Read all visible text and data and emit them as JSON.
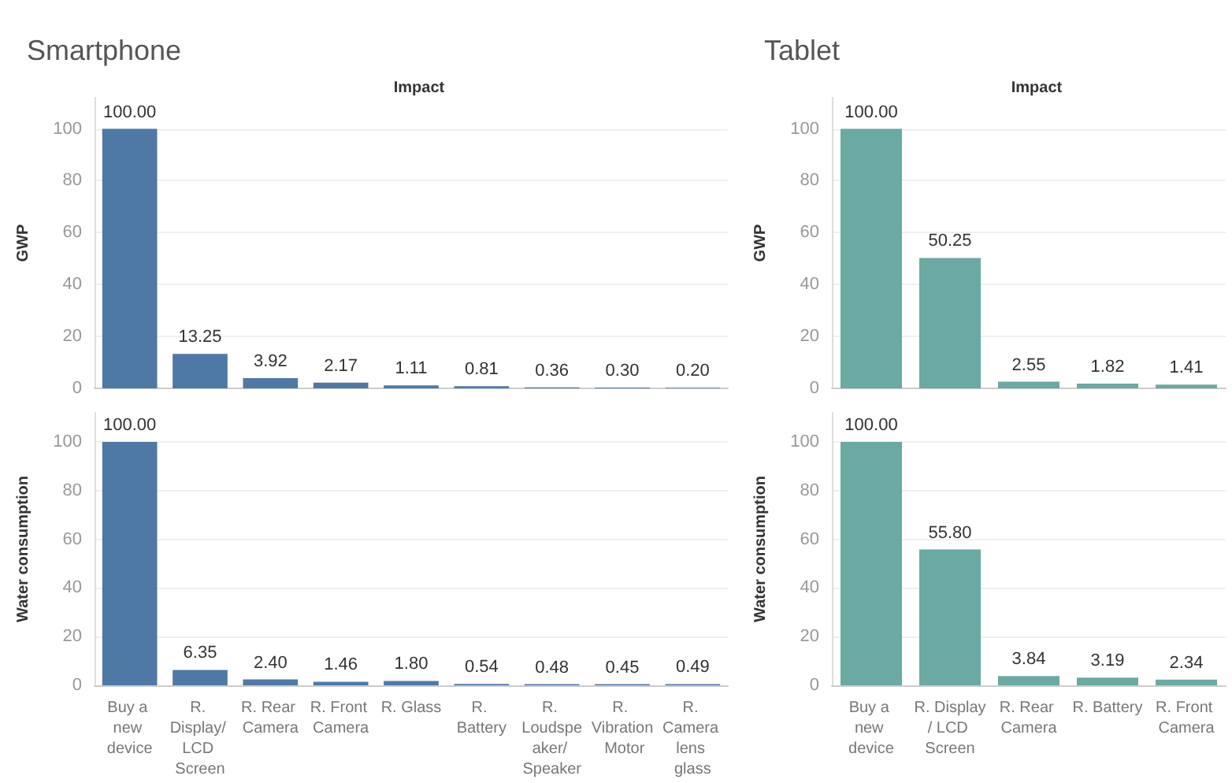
{
  "chart_data": [
    {
      "type": "bar",
      "title": "Smartphone",
      "subtitle": "Impact",
      "ylabel": "GWP",
      "categories": [
        "Buy a new device",
        "R. Display/ LCD Screen",
        "R. Rear Camera",
        "R. Front Camera",
        "R. Glass",
        "R. Battery",
        "R. Loudspeaker/ Speaker",
        "R. Vibration Motor",
        "R. Camera lens glass"
      ],
      "series": [
        {
          "color": "#4e79a7",
          "values": [
            100,
            13.25,
            3.92,
            2.17,
            1.11,
            0.81,
            0.36,
            0.3,
            0.2
          ],
          "value_labels": [
            "100.00",
            "13.25",
            "3.92",
            "2.17",
            "1.11",
            "0.81",
            "0.36",
            "0.30",
            "0.20"
          ]
        }
      ],
      "ylim": [
        0,
        112
      ],
      "yticks": [
        0,
        20,
        40,
        60,
        80,
        100
      ],
      "grid": "y",
      "tick_labels": "y"
    },
    {
      "type": "bar",
      "ylabel": "Water consumption",
      "categories": [
        "Buy a new device",
        "R. Display/ LCD Screen",
        "R. Rear Camera",
        "R. Front Camera",
        "R. Glass",
        "R. Battery",
        "R. Loudspeaker/ Speaker",
        "R. Vibration Motor",
        "R. Camera lens glass"
      ],
      "series": [
        {
          "color": "#4e79a7",
          "values": [
            100,
            6.35,
            2.4,
            1.46,
            1.8,
            0.54,
            0.48,
            0.45,
            0.49
          ],
          "value_labels": [
            "100.00",
            "6.35",
            "2.40",
            "1.46",
            "1.80",
            "0.54",
            "0.48",
            "0.45",
            "0.49"
          ]
        }
      ],
      "ylim": [
        0,
        112
      ],
      "yticks": [
        0,
        20,
        40,
        60,
        80,
        100
      ],
      "grid": "y"
    },
    {
      "type": "bar",
      "title": "Tablet",
      "subtitle": "Impact",
      "ylabel": "GWP",
      "categories": [
        "Buy a new device",
        "R. Display/ LCD Screen",
        "R. Rear Camera",
        "R. Battery",
        "R. Front Camera"
      ],
      "series": [
        {
          "color": "#6aaaa2",
          "values": [
            100,
            50.25,
            2.55,
            1.82,
            1.41
          ],
          "value_labels": [
            "100.00",
            "50.25",
            "2.55",
            "1.82",
            "1.41"
          ]
        }
      ],
      "ylim": [
        0,
        112
      ],
      "yticks": [
        0,
        20,
        40,
        60,
        80,
        100
      ],
      "grid": "y",
      "tick_labels": "y"
    },
    {
      "type": "bar",
      "ylabel": "Water consumption",
      "categories": [
        "Buy a new device",
        "R. Display/ LCD Screen",
        "R. Rear Camera",
        "R. Battery",
        "R. Front Camera"
      ],
      "series": [
        {
          "color": "#6aaaa2",
          "values": [
            100,
            55.8,
            3.84,
            3.19,
            2.34
          ],
          "value_labels": [
            "100.00",
            "55.80",
            "3.84",
            "3.19",
            "2.34"
          ]
        }
      ],
      "ylim": [
        0,
        112
      ],
      "yticks": [
        0,
        20,
        40,
        60,
        80,
        100
      ],
      "grid": "y"
    }
  ]
}
